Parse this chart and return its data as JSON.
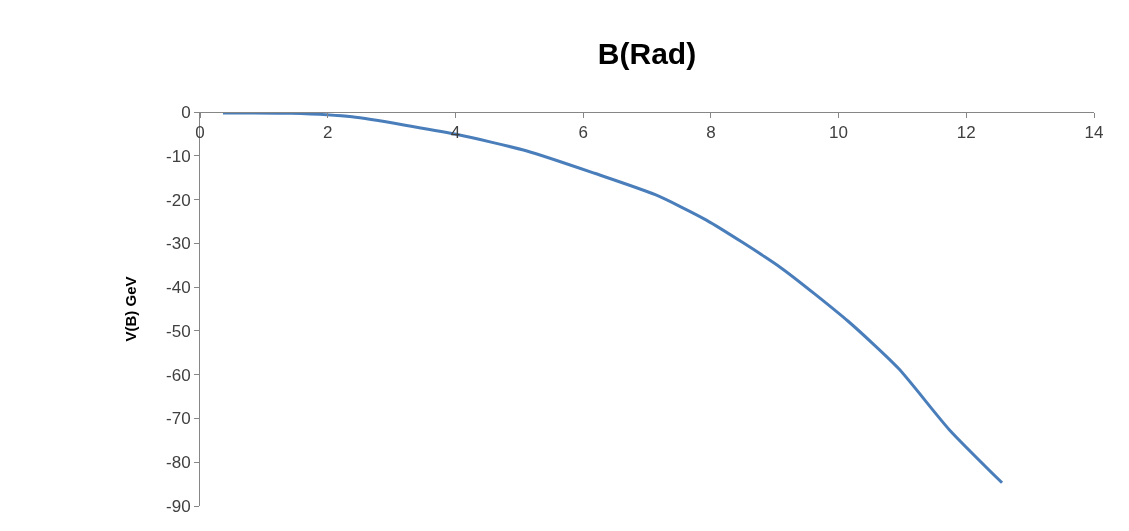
{
  "chart_data": {
    "type": "line",
    "title": "B(Rad)",
    "ylabel": "V(B) GeV",
    "x": [
      0.36,
      1.43,
      2.38,
      4.01,
      5.12,
      6.18,
      7.13,
      7.93,
      9.09,
      10.15,
      10.94,
      11.73,
      12.56
    ],
    "series": [
      {
        "color": "#4a7ebb",
        "values": [
          -0.2,
          -0.3,
          -1.1,
          -5.1,
          -8.9,
          -14,
          -18.9,
          -24.7,
          -35.5,
          -47.8,
          -58.6,
          -72.5,
          -84.7
        ]
      }
    ],
    "xlim": [
      0,
      14
    ],
    "xticks": [
      0,
      2,
      4,
      6,
      8,
      10,
      12,
      14
    ],
    "ylim": [
      -90,
      0
    ],
    "yticks": [
      -90,
      -80,
      -70,
      -60,
      -50,
      -40,
      -30,
      -20,
      -10,
      0
    ],
    "marker": "none",
    "line_style": "solid"
  }
}
